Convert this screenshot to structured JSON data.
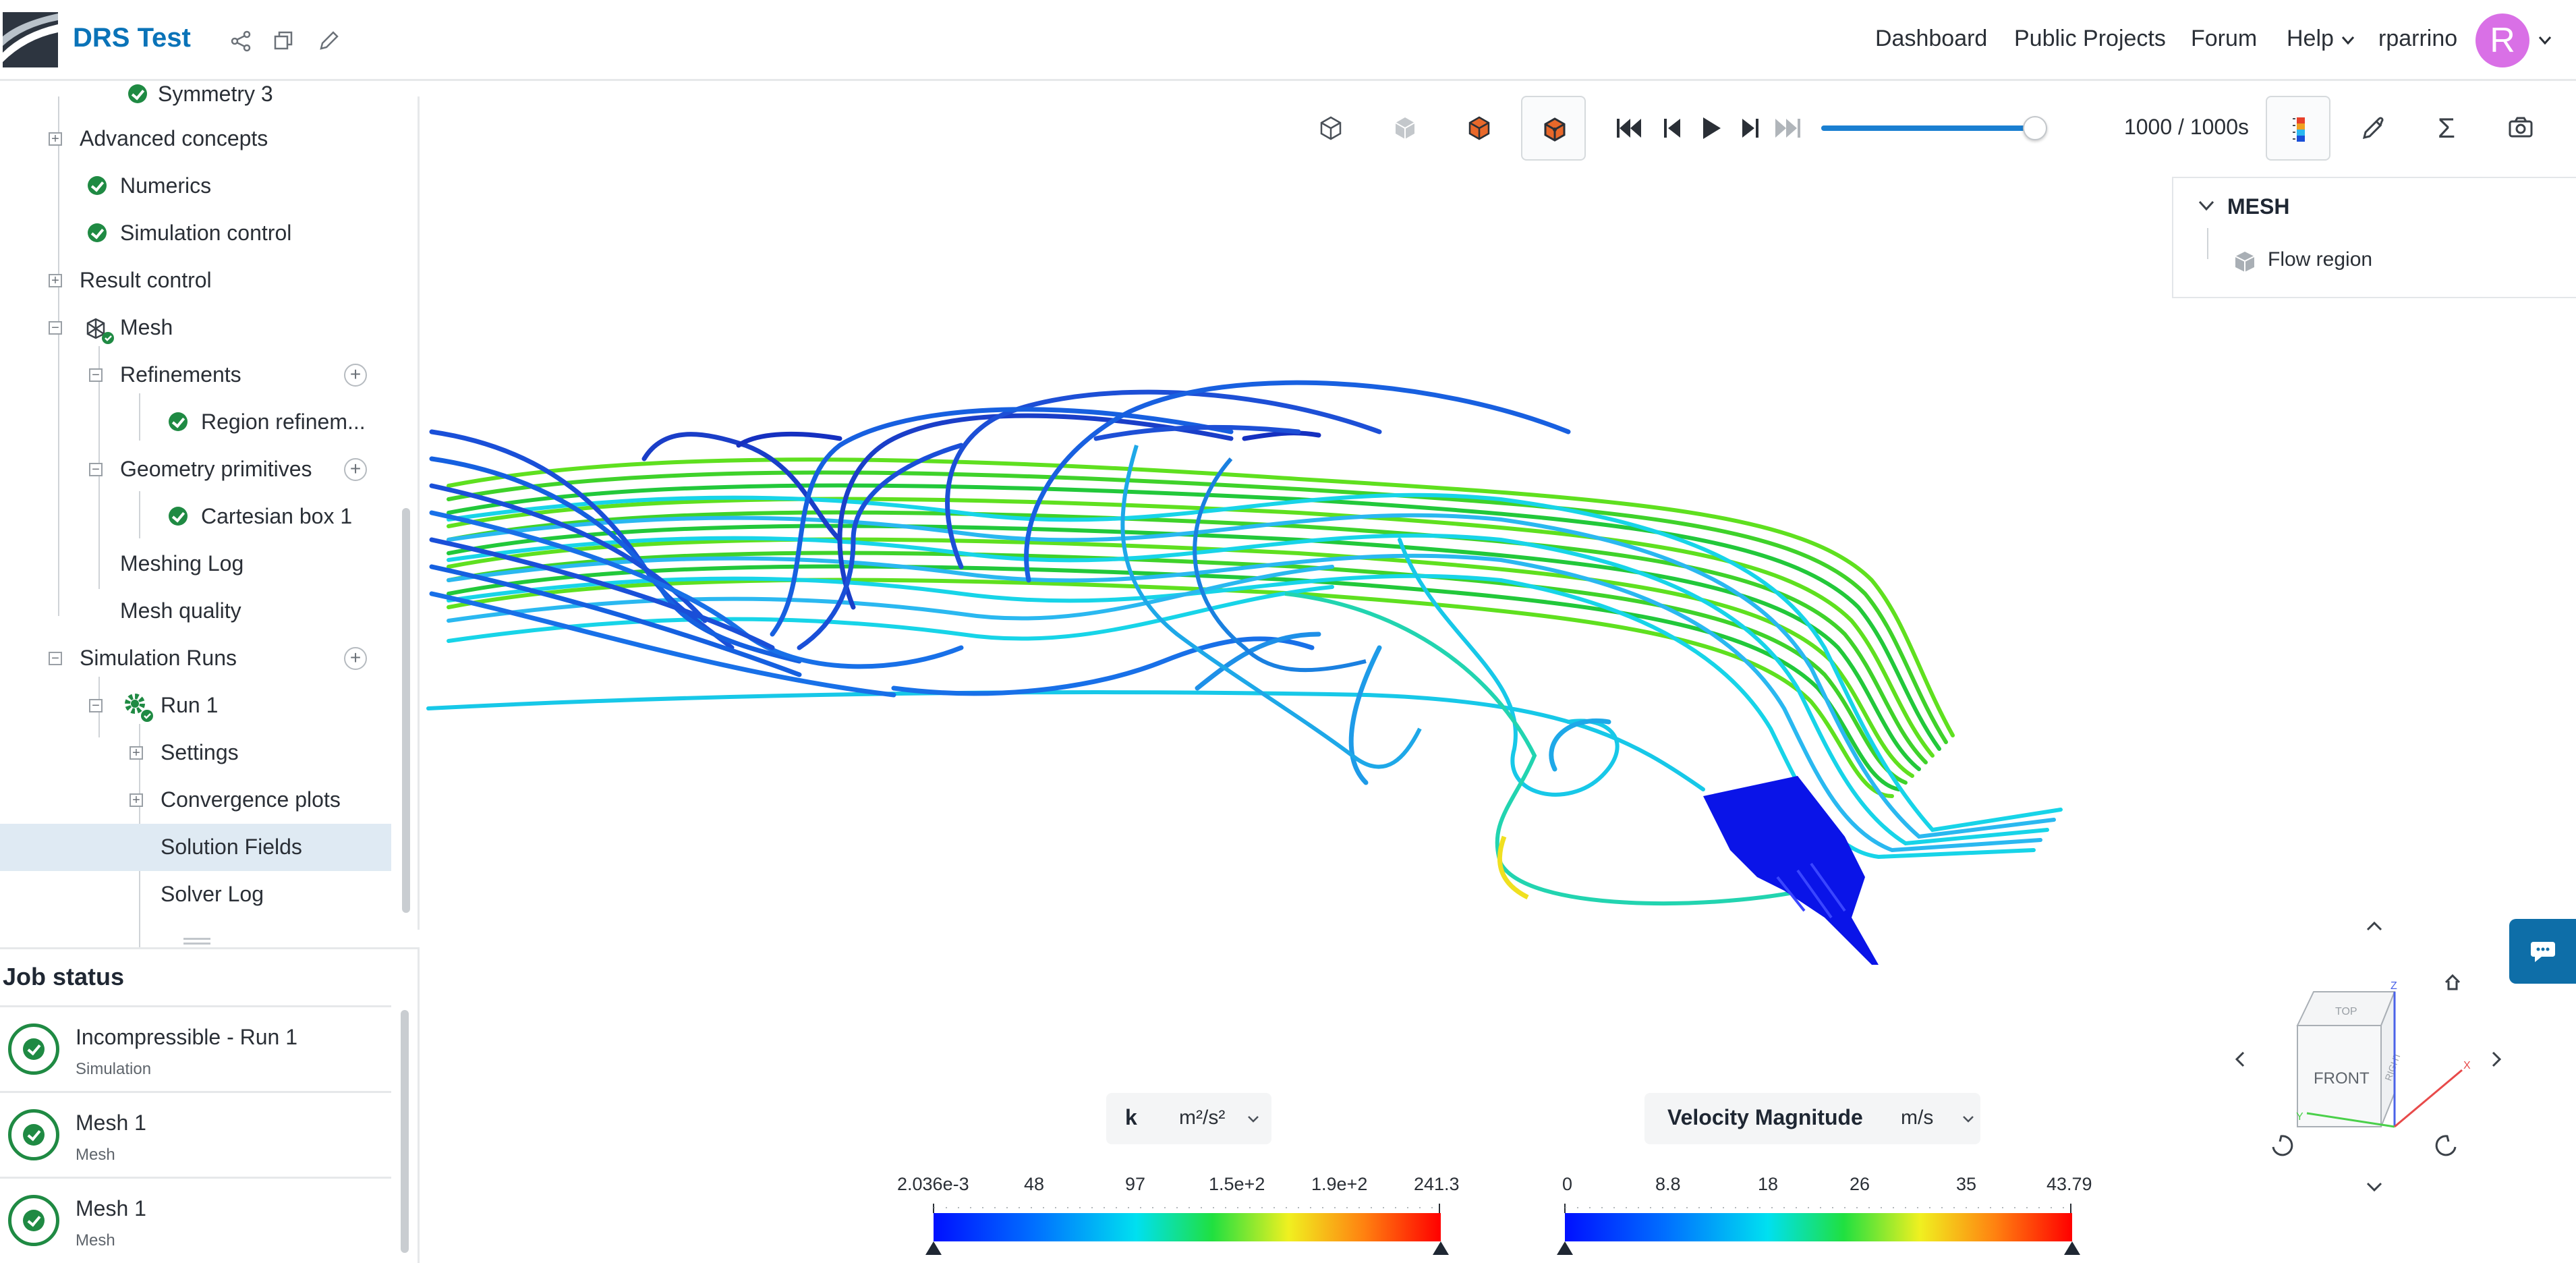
{
  "header": {
    "project_title": "DRS Test",
    "nav": [
      "Dashboard",
      "Public Projects",
      "Forum",
      "Help"
    ],
    "username": "rparrino",
    "avatar_letter": "R",
    "avatar_color": "#d970e6",
    "brand_color": "#0a73b8"
  },
  "tree": {
    "partial_top": "Symmetry 3",
    "items": {
      "advanced": "Advanced concepts",
      "numerics": "Numerics",
      "sim_control": "Simulation control",
      "result_control": "Result control",
      "mesh": "Mesh",
      "refinements": "Refinements",
      "region_ref": "Region refinem...",
      "geom_prims": "Geometry primitives",
      "cart_box": "Cartesian box 1",
      "meshing_log": "Meshing Log",
      "mesh_quality": "Mesh quality",
      "sim_runs": "Simulation Runs",
      "run1": "Run 1",
      "settings": "Settings",
      "conv_plots": "Convergence plots",
      "solution_fields": "Solution Fields",
      "solver_log": "Solver Log"
    }
  },
  "job_status": {
    "title": "Job status",
    "jobs": [
      {
        "name": "Incompressible - Run 1",
        "type": "Simulation"
      },
      {
        "name": "Mesh 1",
        "type": "Mesh"
      },
      {
        "name": "Mesh 1",
        "type": "Mesh"
      }
    ]
  },
  "toolbar": {
    "time_text": "1000 / 1000s",
    "progress_fraction": 1.0
  },
  "mesh_panel": {
    "title": "MESH",
    "item": "Flow region"
  },
  "colorbars": [
    {
      "field": "k",
      "unit": "m²/s²",
      "ticks": [
        "2.036e-3",
        "48",
        "97",
        "1.5e+2",
        "1.9e+2",
        "241.3"
      ]
    },
    {
      "field": "Velocity Magnitude",
      "unit": "m/s",
      "ticks": [
        "0",
        "8.8",
        "18",
        "26",
        "35",
        "43.79"
      ]
    }
  ],
  "navcube": {
    "front": "FRONT",
    "top": "TOP",
    "right": "RIGHT",
    "x": "X",
    "y": "Y",
    "z": "Z"
  }
}
